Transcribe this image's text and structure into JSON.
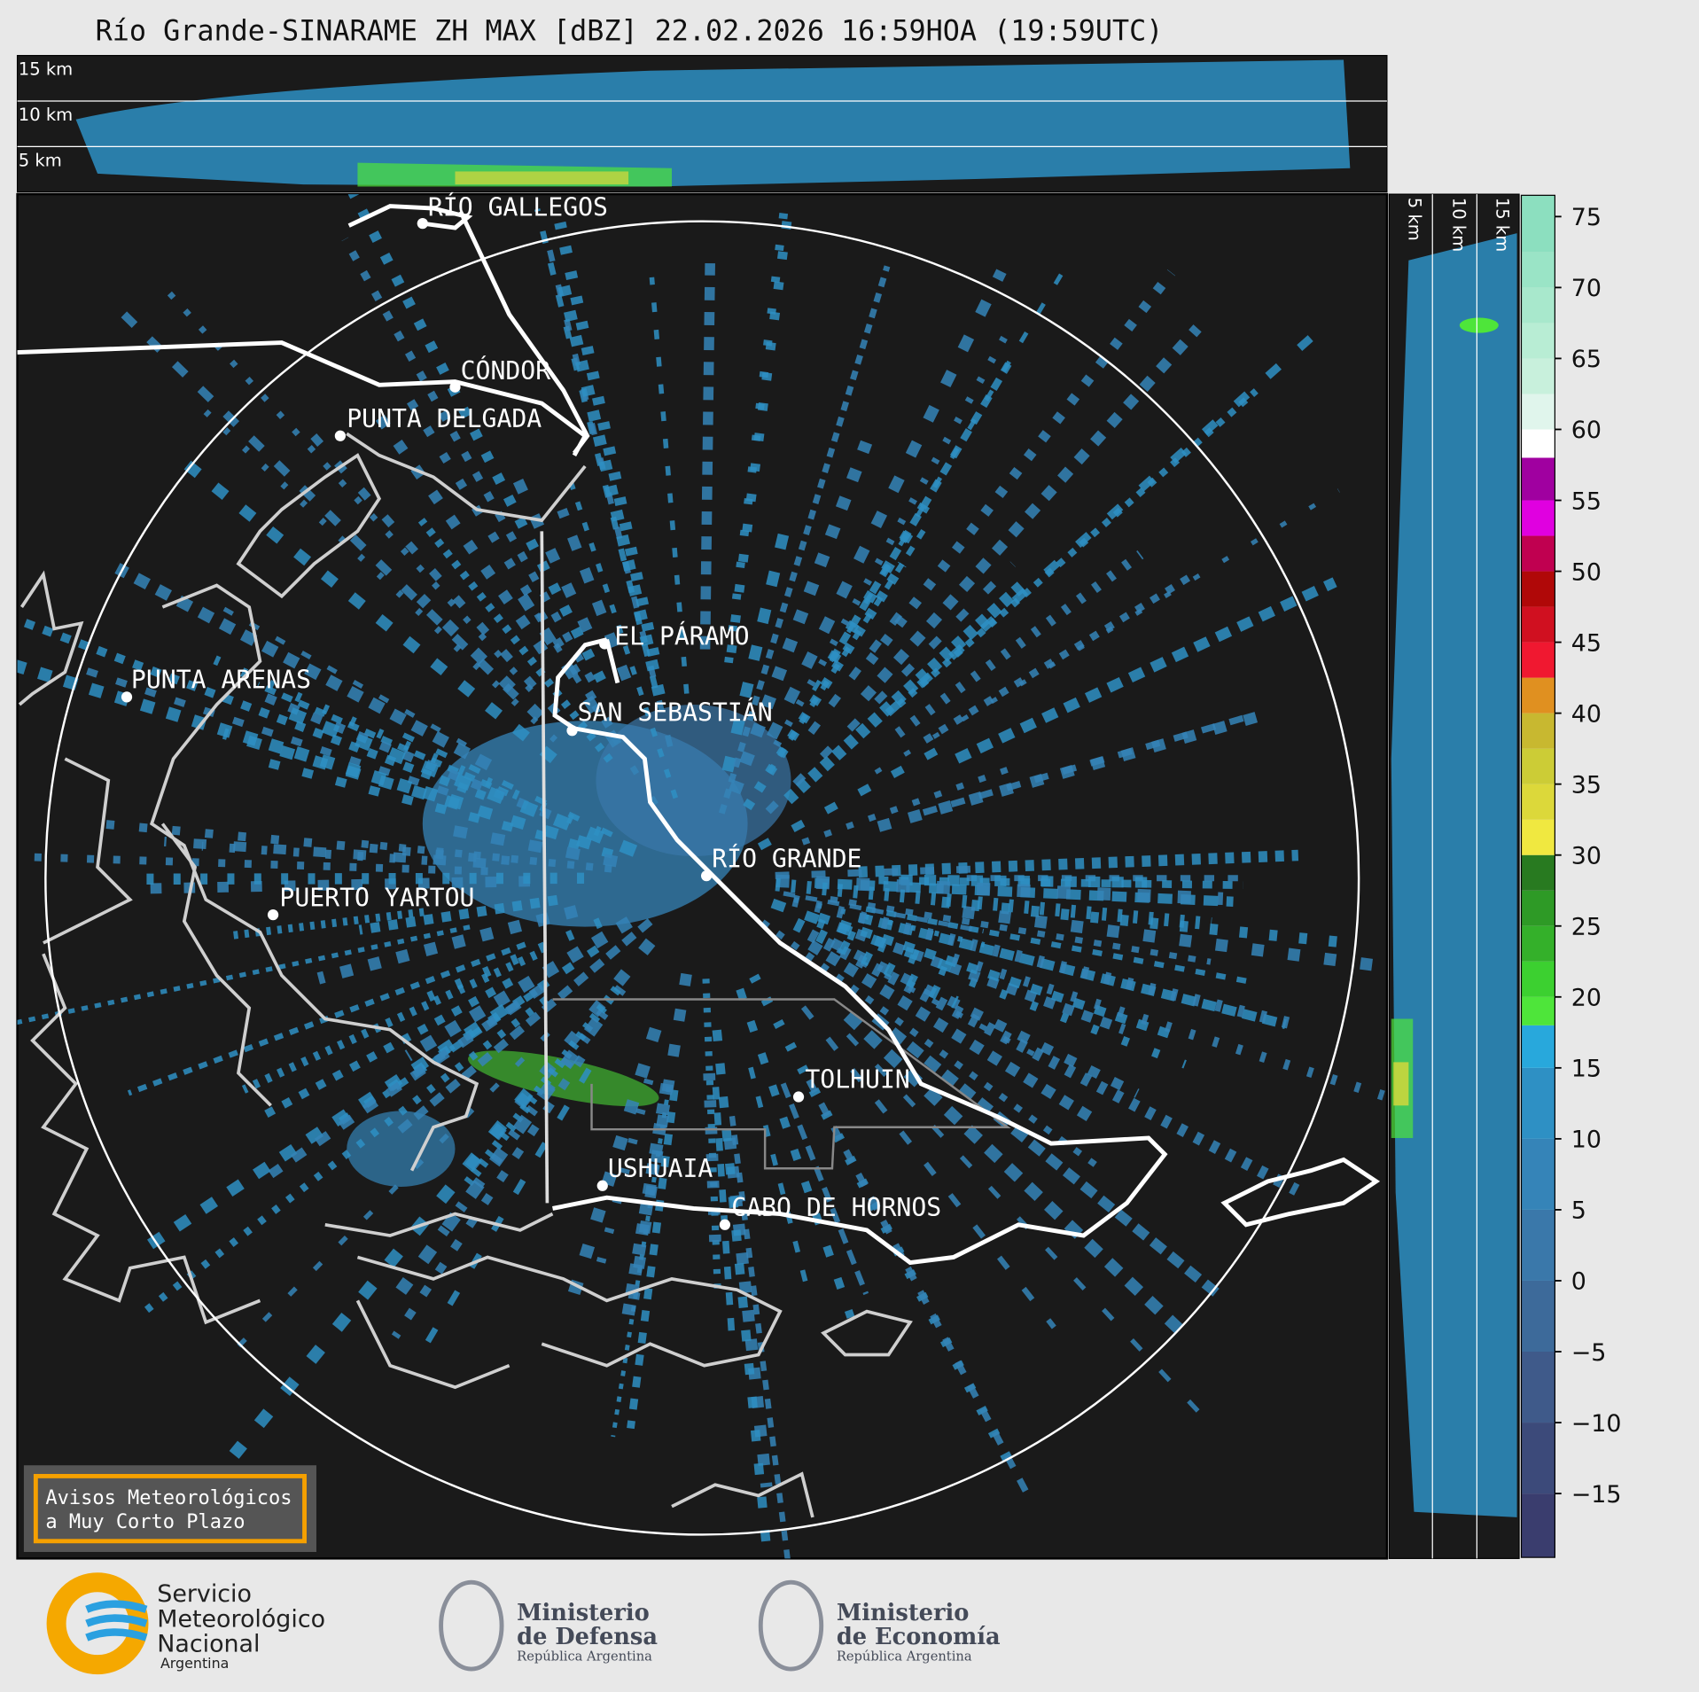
{
  "header": {
    "title": "Río Grande-SINARAME ZH MAX [dBZ] 22.02.2026 16:59HOA (19:59UTC)"
  },
  "top_panel": {
    "altitude_labels": [
      "15 km",
      "10 km",
      "5 km"
    ]
  },
  "side_panel": {
    "altitude_labels": [
      "5 km",
      "10 km",
      "15 km"
    ]
  },
  "map": {
    "places": [
      "RÍO GALLEGOS",
      "CÓNDOR",
      "PUNTA DELGADA",
      "EL PÁRAMO",
      "PUNTA ARENAS",
      "SAN SEBASTIÁN",
      "RÍO GRANDE",
      "PUERTO YARTOU",
      "TOLHUIN",
      "USHUAIA",
      "CABO DE HORNOS"
    ]
  },
  "colorbar": {
    "lim": [
      -19.5,
      76.5
    ],
    "ticks": [
      75,
      70,
      65,
      60,
      55,
      50,
      45,
      40,
      35,
      30,
      25,
      20,
      15,
      10,
      5,
      0,
      {
        "value": -5,
        "label": "−5"
      },
      {
        "value": -10,
        "label": "−10"
      },
      {
        "value": -15,
        "label": "−15"
      }
    ],
    "bounds": [
      -19.5,
      -15,
      -10,
      -5,
      0,
      5,
      10,
      15,
      18,
      20,
      22.5,
      25,
      27.5,
      30,
      32.5,
      35,
      37.5,
      40,
      42.5,
      45,
      47.5,
      50,
      52.5,
      55,
      58,
      60,
      62.5,
      65,
      67.5,
      70,
      72.5,
      76.5
    ],
    "colors": [
      "#3a3d6e",
      "#3c4a7a",
      "#3f5a8a",
      "#3d6a9a",
      "#3a78aa",
      "#3584b8",
      "#2e90c4",
      "#28a8dc",
      "#4ee53a",
      "#3cd030",
      "#34b02a",
      "#2e9a26",
      "#287a20",
      "#f0e840",
      "#dcd83a",
      "#cccc36",
      "#c8b830",
      "#e09020",
      "#f01830",
      "#d01020",
      "#b00808",
      "#c00050",
      "#e000e0",
      "#a000a0",
      "#ffffff",
      "#e0f5ec",
      "#c8f0dc",
      "#b8edd4",
      "#a8e8cc",
      "#9ae4c6",
      "#8cdfbf"
    ]
  },
  "notice": {
    "lines": [
      "Avisos Meteorológicos",
      "a Muy Corto Plazo"
    ]
  },
  "footer": {
    "smn": [
      "Servicio",
      "Meteorológico",
      "Nacional",
      "Argentina"
    ],
    "defensa": [
      "Ministerio",
      "de Defensa",
      "República Argentina"
    ],
    "economia": [
      "Ministerio",
      "de Economía",
      "República Argentina"
    ]
  }
}
